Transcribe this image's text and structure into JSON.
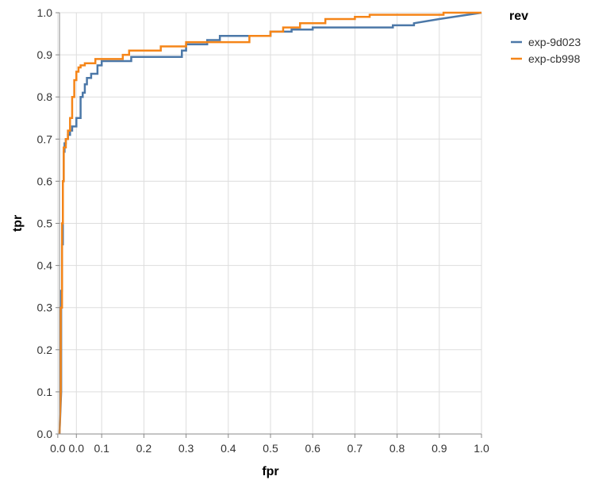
{
  "chart_data": {
    "type": "line",
    "xlabel": "fpr",
    "ylabel": "tpr",
    "xlim": [
      0,
      1
    ],
    "ylim": [
      0,
      1
    ],
    "x_ticks": [
      "0.0",
      "0.0",
      "0.1",
      "0.2",
      "0.3",
      "0.4",
      "0.5",
      "0.6",
      "0.7",
      "0.8",
      "0.9",
      "1.0"
    ],
    "x_tick_values": [
      -0.004,
      0.04,
      0.1,
      0.2,
      0.3,
      0.4,
      0.5,
      0.6,
      0.7,
      0.8,
      0.9,
      1.0
    ],
    "y_ticks": [
      "0.0",
      "0.1",
      "0.2",
      "0.3",
      "0.4",
      "0.5",
      "0.6",
      "0.7",
      "0.8",
      "0.9",
      "1.0"
    ],
    "y_tick_values": [
      0,
      0.1,
      0.2,
      0.3,
      0.4,
      0.5,
      0.6,
      0.7,
      0.8,
      0.9,
      1.0
    ],
    "grid": true,
    "legend": {
      "title": "rev",
      "position": "right"
    },
    "series": [
      {
        "name": "exp-9d023",
        "color": "#4c78a8",
        "x": [
          0,
          0.004,
          0.004,
          0.006,
          0.006,
          0.008,
          0.008,
          0.01,
          0.01,
          0.012,
          0.012,
          0.015,
          0.015,
          0.02,
          0.02,
          0.025,
          0.025,
          0.03,
          0.03,
          0.04,
          0.04,
          0.05,
          0.05,
          0.055,
          0.055,
          0.06,
          0.06,
          0.065,
          0.065,
          0.075,
          0.075,
          0.09,
          0.09,
          0.1,
          0.1,
          0.17,
          0.17,
          0.29,
          0.29,
          0.3,
          0.3,
          0.35,
          0.35,
          0.38,
          0.38,
          0.5,
          0.5,
          0.55,
          0.55,
          0.6,
          0.6,
          0.79,
          0.79,
          0.84,
          0.84,
          0.9,
          1.0
        ],
        "y": [
          0,
          0.1,
          0.34,
          0.34,
          0.45,
          0.45,
          0.6,
          0.6,
          0.67,
          0.67,
          0.69,
          0.69,
          0.7,
          0.7,
          0.71,
          0.71,
          0.72,
          0.72,
          0.73,
          0.73,
          0.75,
          0.75,
          0.8,
          0.8,
          0.81,
          0.81,
          0.83,
          0.83,
          0.845,
          0.845,
          0.855,
          0.855,
          0.875,
          0.875,
          0.885,
          0.885,
          0.895,
          0.895,
          0.91,
          0.91,
          0.925,
          0.925,
          0.935,
          0.935,
          0.945,
          0.945,
          0.955,
          0.955,
          0.96,
          0.96,
          0.965,
          0.965,
          0.97,
          0.97,
          0.975,
          0.985,
          1.0
        ]
      },
      {
        "name": "exp-cb998",
        "color": "#f58518",
        "x": [
          0,
          0.003,
          0.003,
          0.006,
          0.006,
          0.008,
          0.008,
          0.01,
          0.01,
          0.015,
          0.015,
          0.02,
          0.02,
          0.025,
          0.025,
          0.03,
          0.03,
          0.035,
          0.035,
          0.04,
          0.04,
          0.045,
          0.045,
          0.05,
          0.05,
          0.06,
          0.06,
          0.085,
          0.085,
          0.15,
          0.15,
          0.165,
          0.165,
          0.24,
          0.24,
          0.3,
          0.3,
          0.45,
          0.45,
          0.5,
          0.5,
          0.53,
          0.53,
          0.57,
          0.57,
          0.63,
          0.63,
          0.7,
          0.7,
          0.735,
          0.735,
          0.91,
          0.91,
          1.0
        ],
        "y": [
          0,
          0.1,
          0.3,
          0.3,
          0.5,
          0.5,
          0.6,
          0.6,
          0.68,
          0.68,
          0.7,
          0.7,
          0.72,
          0.72,
          0.75,
          0.75,
          0.8,
          0.8,
          0.84,
          0.84,
          0.86,
          0.86,
          0.87,
          0.87,
          0.875,
          0.875,
          0.88,
          0.88,
          0.89,
          0.89,
          0.9,
          0.9,
          0.91,
          0.91,
          0.92,
          0.92,
          0.93,
          0.93,
          0.945,
          0.945,
          0.955,
          0.955,
          0.965,
          0.965,
          0.975,
          0.975,
          0.985,
          0.985,
          0.99,
          0.99,
          0.995,
          0.995,
          1.0,
          1.0
        ]
      }
    ]
  }
}
